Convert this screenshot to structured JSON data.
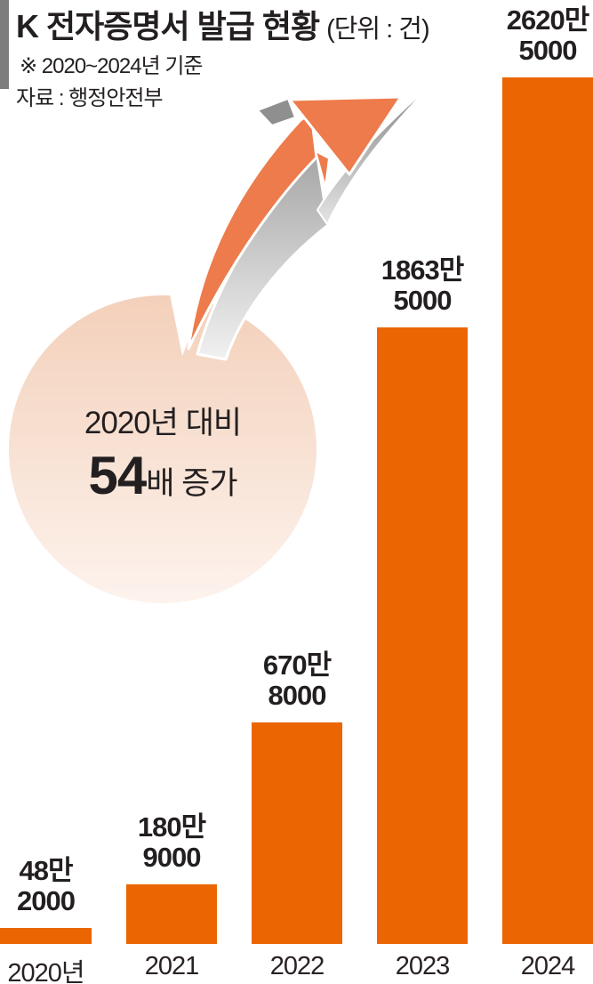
{
  "header": {
    "title": "K 전자증명서 발급 현황",
    "unit_note": "(단위 : 건)",
    "subtitle": "※ 2020~2024년 기준",
    "source": "자료 : 행정안전부"
  },
  "callout": {
    "line1": "2020년 대비",
    "big_number": "54",
    "suffix": "배 증가"
  },
  "icons": {
    "growth_arrow": "up-right-curved-arrow-icon"
  },
  "chart_data": {
    "type": "bar",
    "title": "K 전자증명서 발급 현황",
    "unit": "건",
    "categories": [
      "2020년",
      "2021",
      "2022",
      "2023",
      "2024"
    ],
    "values": [
      482000,
      1809000,
      6708000,
      18635000,
      26205000
    ],
    "value_labels": [
      [
        "48만",
        "2000"
      ],
      [
        "180만",
        "9000"
      ],
      [
        "670만",
        "8000"
      ],
      [
        "1863만",
        "5000"
      ],
      [
        "2620만",
        "5000"
      ]
    ],
    "ylim": [
      0,
      26205000
    ],
    "grid": false,
    "legend": "none",
    "bar_color": "#eb6502"
  },
  "colors": {
    "bar_orange": "#eb6502",
    "arrow_orange": "#ed7b4b",
    "arrow_gray": "#8f8f8f",
    "accent_gray": "#7d7d7d",
    "circle_top": "#f3d0ba",
    "circle_bottom": "#fdf3ed",
    "text": "#231f20"
  }
}
